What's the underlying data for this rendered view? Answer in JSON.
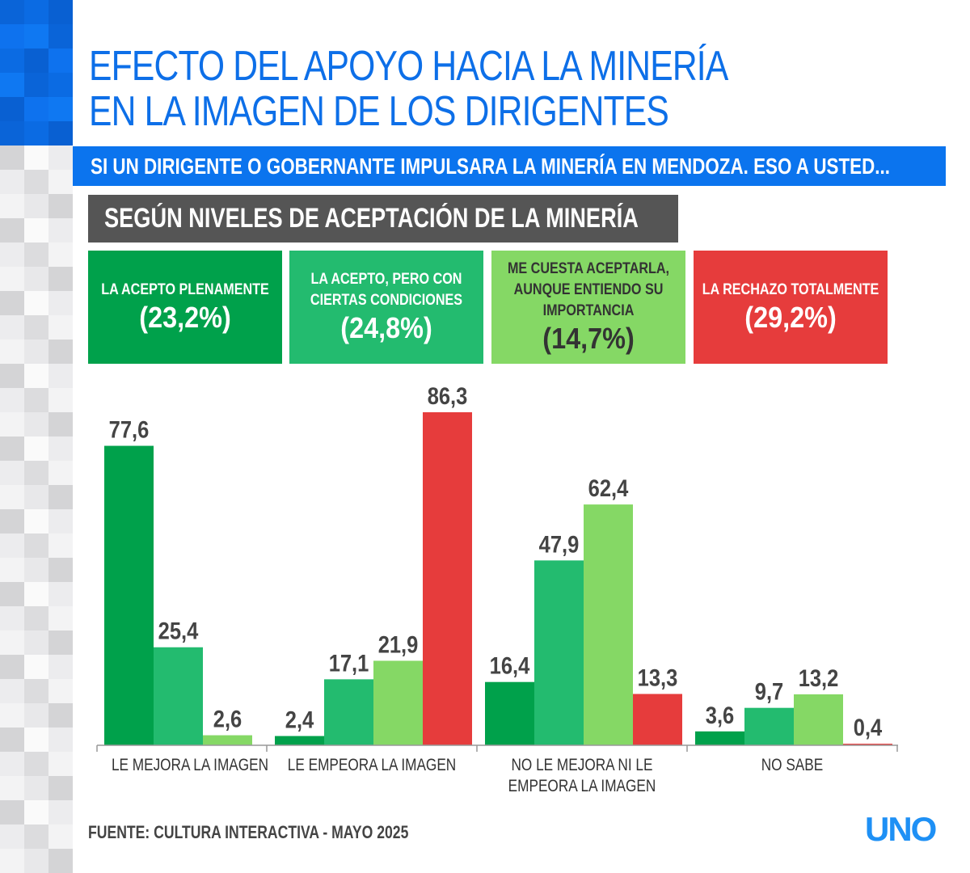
{
  "title_lines": [
    "EFECTO DEL APOYO HACIA LA MINERÍA",
    "EN LA IMAGEN DE LOS DIRIGENTES"
  ],
  "subtitle": "SI UN DIRIGENTE O GOBERNANTE IMPULSARA LA MINERÍA EN MENDOZA. ESO A USTED...",
  "section_label": "SEGÚN NIVELES DE ACEPTACIÓN DE LA MINERÍA",
  "source": "FUENTE: CULTURA INTERACTIVA - MAYO 2025",
  "logo": "UNO",
  "colors": {
    "title": "#0d6fe8",
    "subtitle_bg": "#0b74ee",
    "section_bg": "#555555",
    "logo": "#1e90f5"
  },
  "chart_data": {
    "type": "bar",
    "categories": [
      "LE MEJORA LA IMAGEN",
      "LE EMPEORA LA IMAGEN",
      "NO LE MEJORA NI LE EMPEORA LA IMAGEN",
      "NO SABE"
    ],
    "series": [
      {
        "name": "LA ACEPTO PLENAMENTE",
        "share": "(23,2%)",
        "color": "#00a14b",
        "text_color": "#ffffff",
        "values": [
          77.6,
          2.4,
          16.4,
          3.6
        ],
        "labels": [
          "77,6",
          "2,4",
          "16,4",
          "3,6"
        ]
      },
      {
        "name": "LA ACEPTO, PERO CON CIERTAS CONDICIONES",
        "share": "(24,8%)",
        "color": "#23bb6f",
        "text_color": "#ffffff",
        "values": [
          25.4,
          17.1,
          47.9,
          9.7
        ],
        "labels": [
          "25,4",
          "17,1",
          "47,9",
          "9,7"
        ]
      },
      {
        "name": "ME CUESTA ACEPTARLA, AUNQUE ENTIENDO SU IMPORTANCIA",
        "share": "(14,7%)",
        "color": "#85d865",
        "text_color": "#333333",
        "values": [
          2.6,
          21.9,
          62.4,
          13.2
        ],
        "labels": [
          "2,6",
          "21,9",
          "62,4",
          "13,2"
        ]
      },
      {
        "name": "LA RECHAZO TOTALMENTE",
        "share": "(29,2%)",
        "color": "#e63c3c",
        "text_color": "#ffffff",
        "values": [
          null,
          86.3,
          13.3,
          0.4
        ],
        "labels": [
          "",
          "86,3",
          "13,3",
          "0,4"
        ]
      }
    ],
    "ylim": [
      0,
      90
    ],
    "grid": false,
    "legend_placement": "top"
  }
}
